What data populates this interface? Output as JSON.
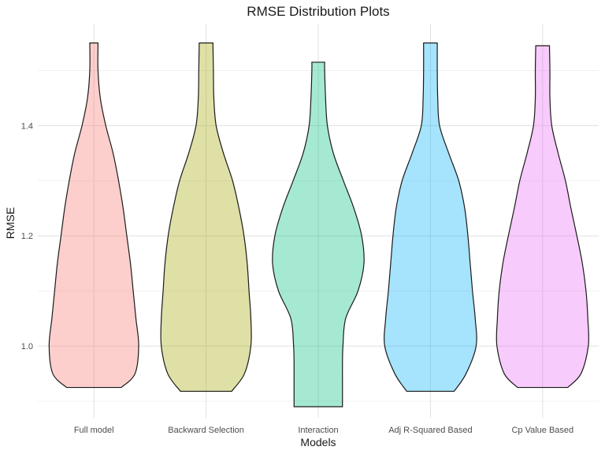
{
  "chart_data": {
    "type": "violin",
    "title": "RMSE Distribution Plots",
    "xlabel": "Models",
    "ylabel": "RMSE",
    "categories": [
      "Full model",
      "Backward Selection",
      "Interaction",
      "Adj R-Squared Based",
      "Cp Value Based"
    ],
    "ylim": [
      0.87,
      1.585
    ],
    "y_ticks": [
      1.0,
      1.2,
      1.4
    ],
    "y_tick_labels": [
      "1.0",
      "1.2",
      "1.4"
    ],
    "grid": true,
    "legend": "none",
    "series": [
      {
        "category": "Full model",
        "color": "#F8766D",
        "min": 0.925,
        "max": 1.55,
        "density_profile": [
          [
            0.925,
            0.6
          ],
          [
            0.95,
            0.9
          ],
          [
            1.0,
            0.98
          ],
          [
            1.05,
            0.92
          ],
          [
            1.1,
            0.86
          ],
          [
            1.15,
            0.8
          ],
          [
            1.2,
            0.72
          ],
          [
            1.25,
            0.64
          ],
          [
            1.3,
            0.54
          ],
          [
            1.35,
            0.42
          ],
          [
            1.4,
            0.26
          ],
          [
            1.45,
            0.14
          ],
          [
            1.5,
            0.09
          ],
          [
            1.55,
            0.09
          ]
        ]
      },
      {
        "category": "Backward Selection",
        "color": "#A3A500",
        "min": 0.918,
        "max": 1.55,
        "density_profile": [
          [
            0.918,
            0.56
          ],
          [
            0.95,
            0.84
          ],
          [
            1.0,
            0.98
          ],
          [
            1.05,
            0.98
          ],
          [
            1.1,
            0.94
          ],
          [
            1.15,
            0.9
          ],
          [
            1.2,
            0.83
          ],
          [
            1.25,
            0.72
          ],
          [
            1.3,
            0.58
          ],
          [
            1.35,
            0.38
          ],
          [
            1.4,
            0.22
          ],
          [
            1.45,
            0.17
          ],
          [
            1.5,
            0.16
          ],
          [
            1.55,
            0.15
          ]
        ]
      },
      {
        "category": "Interaction",
        "color": "#00BF7D",
        "min": 0.89,
        "max": 1.515,
        "density_profile": [
          [
            0.89,
            0.53
          ],
          [
            0.93,
            0.53
          ],
          [
            0.97,
            0.53
          ],
          [
            1.0,
            0.54
          ],
          [
            1.05,
            0.6
          ],
          [
            1.1,
            0.87
          ],
          [
            1.15,
            1.0
          ],
          [
            1.2,
            0.95
          ],
          [
            1.25,
            0.78
          ],
          [
            1.3,
            0.55
          ],
          [
            1.35,
            0.33
          ],
          [
            1.4,
            0.2
          ],
          [
            1.45,
            0.16
          ],
          [
            1.5,
            0.14
          ],
          [
            1.515,
            0.14
          ]
        ]
      },
      {
        "category": "Adj R-Squared Based",
        "color": "#00B0F6",
        "min": 0.918,
        "max": 1.55,
        "density_profile": [
          [
            0.918,
            0.52
          ],
          [
            0.95,
            0.78
          ],
          [
            1.0,
            1.0
          ],
          [
            1.05,
            0.98
          ],
          [
            1.1,
            0.92
          ],
          [
            1.15,
            0.87
          ],
          [
            1.2,
            0.82
          ],
          [
            1.25,
            0.75
          ],
          [
            1.3,
            0.62
          ],
          [
            1.35,
            0.4
          ],
          [
            1.4,
            0.2
          ],
          [
            1.45,
            0.16
          ],
          [
            1.5,
            0.15
          ],
          [
            1.55,
            0.15
          ]
        ]
      },
      {
        "category": "Cp Value Based",
        "color": "#E76BF3",
        "min": 0.925,
        "max": 1.545,
        "density_profile": [
          [
            0.925,
            0.55
          ],
          [
            0.95,
            0.84
          ],
          [
            1.0,
            1.0
          ],
          [
            1.05,
            0.99
          ],
          [
            1.1,
            0.95
          ],
          [
            1.15,
            0.87
          ],
          [
            1.2,
            0.75
          ],
          [
            1.25,
            0.62
          ],
          [
            1.3,
            0.5
          ],
          [
            1.35,
            0.34
          ],
          [
            1.4,
            0.2
          ],
          [
            1.45,
            0.16
          ],
          [
            1.5,
            0.16
          ],
          [
            1.545,
            0.15
          ]
        ]
      }
    ]
  }
}
